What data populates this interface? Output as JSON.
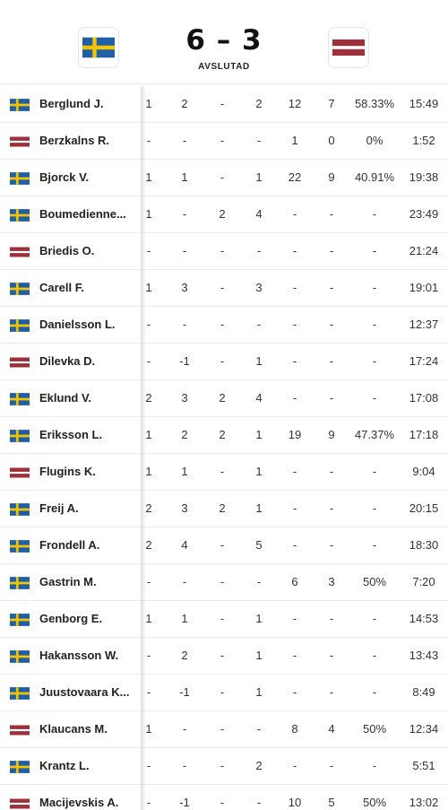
{
  "match": {
    "score": "6 – 3",
    "status": "AVSLUTAD",
    "home_flag": "sweden-flag",
    "away_flag": "latvia-flag"
  },
  "colors": {
    "sweden_blue": "#1f5fa6",
    "sweden_yellow": "#f5c400",
    "latvia_red": "#9e3039",
    "latvia_white": "#ffffff"
  },
  "players": [
    {
      "name": "Berglund J.",
      "team": "SWE",
      "stats": [
        "1",
        "2",
        "-",
        "2",
        "12",
        "7",
        "58.33%",
        "15:49"
      ]
    },
    {
      "name": "Berzkalns R.",
      "team": "LAT",
      "stats": [
        "-",
        "-",
        "-",
        "-",
        "1",
        "0",
        "0%",
        "1:52"
      ]
    },
    {
      "name": "Bjorck V.",
      "team": "SWE",
      "stats": [
        "1",
        "1",
        "-",
        "1",
        "22",
        "9",
        "40.91%",
        "19:38"
      ]
    },
    {
      "name": "Boumedienne...",
      "team": "SWE",
      "stats": [
        "1",
        "-",
        "2",
        "4",
        "-",
        "-",
        "-",
        "23:49"
      ]
    },
    {
      "name": "Briedis O.",
      "team": "LAT",
      "stats": [
        "-",
        "-",
        "-",
        "-",
        "-",
        "-",
        "-",
        "21:24"
      ]
    },
    {
      "name": "Carell F.",
      "team": "SWE",
      "stats": [
        "1",
        "3",
        "-",
        "3",
        "-",
        "-",
        "-",
        "19:01"
      ]
    },
    {
      "name": "Danielsson L.",
      "team": "SWE",
      "stats": [
        "-",
        "-",
        "-",
        "-",
        "-",
        "-",
        "-",
        "12:37"
      ]
    },
    {
      "name": "Dilevka D.",
      "team": "LAT",
      "stats": [
        "-",
        "-1",
        "-",
        "1",
        "-",
        "-",
        "-",
        "17:24"
      ]
    },
    {
      "name": "Eklund V.",
      "team": "SWE",
      "stats": [
        "2",
        "3",
        "2",
        "4",
        "-",
        "-",
        "-",
        "17:08"
      ]
    },
    {
      "name": "Eriksson L.",
      "team": "SWE",
      "stats": [
        "1",
        "2",
        "2",
        "1",
        "19",
        "9",
        "47.37%",
        "17:18"
      ]
    },
    {
      "name": "Flugins K.",
      "team": "LAT",
      "stats": [
        "1",
        "1",
        "-",
        "1",
        "-",
        "-",
        "-",
        "9:04"
      ]
    },
    {
      "name": "Freij A.",
      "team": "SWE",
      "stats": [
        "2",
        "3",
        "2",
        "1",
        "-",
        "-",
        "-",
        "20:15"
      ]
    },
    {
      "name": "Frondell A.",
      "team": "SWE",
      "stats": [
        "2",
        "4",
        "-",
        "5",
        "-",
        "-",
        "-",
        "18:30"
      ]
    },
    {
      "name": "Gastrin M.",
      "team": "SWE",
      "stats": [
        "-",
        "-",
        "-",
        "-",
        "6",
        "3",
        "50%",
        "7:20"
      ]
    },
    {
      "name": "Genborg E.",
      "team": "SWE",
      "stats": [
        "1",
        "1",
        "-",
        "1",
        "-",
        "-",
        "-",
        "14:53"
      ]
    },
    {
      "name": "Hakansson W.",
      "team": "SWE",
      "stats": [
        "-",
        "2",
        "-",
        "1",
        "-",
        "-",
        "-",
        "13:43"
      ]
    },
    {
      "name": "Juustovaara K...",
      "team": "SWE",
      "stats": [
        "-",
        "-1",
        "-",
        "1",
        "-",
        "-",
        "-",
        "8:49"
      ]
    },
    {
      "name": "Klaucans M.",
      "team": "LAT",
      "stats": [
        "1",
        "-",
        "-",
        "-",
        "8",
        "4",
        "50%",
        "12:34"
      ]
    },
    {
      "name": "Krantz L.",
      "team": "SWE",
      "stats": [
        "-",
        "-",
        "-",
        "2",
        "-",
        "-",
        "-",
        "5:51"
      ]
    },
    {
      "name": "Macijevskis A.",
      "team": "LAT",
      "stats": [
        "-",
        "-1",
        "-",
        "-",
        "10",
        "5",
        "50%",
        "13:02"
      ]
    }
  ]
}
